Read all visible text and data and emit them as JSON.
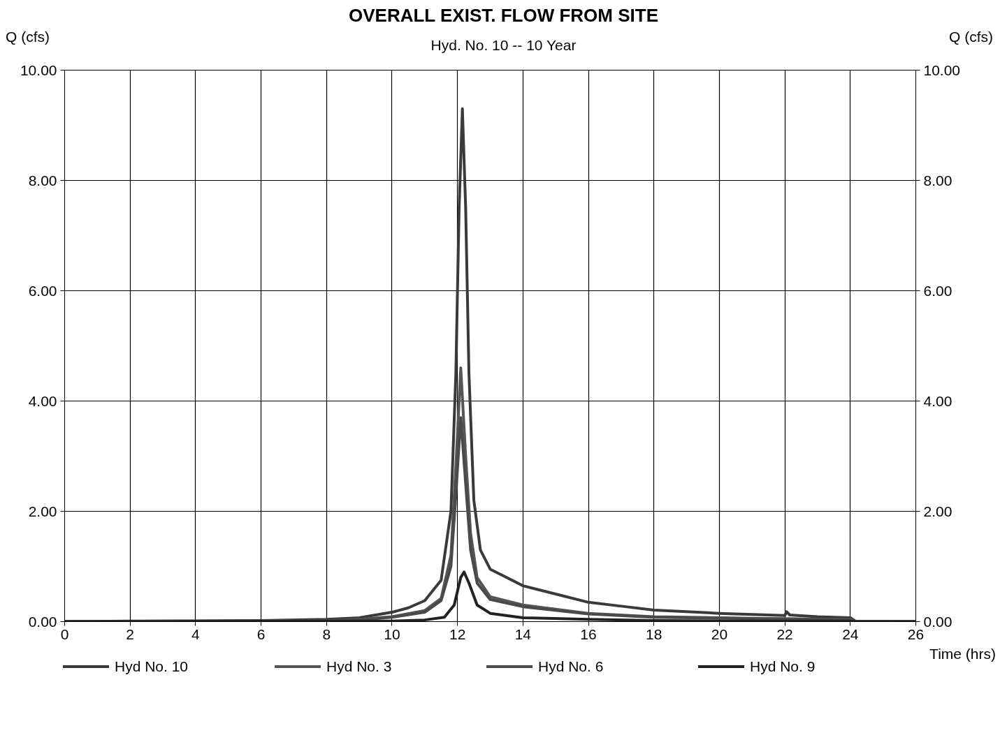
{
  "chart_data": {
    "type": "line",
    "title": "OVERALL EXIST. FLOW FROM SITE",
    "subtitle": "Hyd. No. 10 -- 10 Year",
    "xlabel": "Time (hrs)",
    "ylabel": "Q (cfs)",
    "y2label": "Q (cfs)",
    "xlim": [
      0,
      26
    ],
    "xticks": [
      0,
      2,
      4,
      6,
      8,
      10,
      12,
      14,
      16,
      18,
      20,
      22,
      24,
      26
    ],
    "ylim": [
      0,
      10
    ],
    "yticks": [
      {
        "value": 0,
        "label": "0.00"
      },
      {
        "value": 2,
        "label": "2.00"
      },
      {
        "value": 4,
        "label": "4.00"
      },
      {
        "value": 6,
        "label": "6.00"
      },
      {
        "value": 8,
        "label": "8.00"
      },
      {
        "value": 10,
        "label": "10.00"
      }
    ],
    "y2lim": [
      0,
      10
    ],
    "y2ticks": [
      {
        "value": 0,
        "label": "0.00"
      },
      {
        "value": 2,
        "label": "2.00"
      },
      {
        "value": 4,
        "label": "4.00"
      },
      {
        "value": 6,
        "label": "6.00"
      },
      {
        "value": 8,
        "label": "8.00"
      },
      {
        "value": 10,
        "label": "10.00"
      }
    ],
    "grid": true,
    "legend": "bottom",
    "marker": "none",
    "line_style": "solid",
    "series": [
      {
        "name": "Hyd No. 10",
        "color": "#3a3a3a",
        "x": [
          0,
          2,
          4,
          6,
          8,
          9,
          10,
          10.5,
          11,
          11.5,
          11.8,
          11.95,
          12.05,
          12.15,
          12.25,
          12.35,
          12.5,
          12.7,
          13,
          13.5,
          14,
          15,
          16,
          17,
          18,
          19,
          20,
          21,
          22,
          22.05,
          22.15,
          23,
          24,
          24.15,
          26
        ],
        "values": [
          0,
          0.01,
          0.01,
          0.02,
          0.04,
          0.07,
          0.17,
          0.25,
          0.38,
          0.75,
          2.0,
          4.5,
          7.5,
          9.3,
          7.5,
          4.5,
          2.2,
          1.3,
          0.95,
          0.8,
          0.65,
          0.5,
          0.35,
          0.28,
          0.21,
          0.18,
          0.15,
          0.13,
          0.11,
          0.18,
          0.12,
          0.09,
          0.07,
          0.01,
          0
        ]
      },
      {
        "name": "Hyd No. 3",
        "color": "#555555",
        "x": [
          0,
          4,
          8,
          9,
          10,
          11,
          11.5,
          11.8,
          11.95,
          12.1,
          12.25,
          12.4,
          12.6,
          13,
          14,
          16,
          18,
          20,
          22,
          24,
          24.15,
          26
        ],
        "values": [
          0,
          0.01,
          0.02,
          0.04,
          0.09,
          0.2,
          0.42,
          1.2,
          2.8,
          4.6,
          3.0,
          1.6,
          0.8,
          0.45,
          0.3,
          0.15,
          0.09,
          0.07,
          0.05,
          0.04,
          0,
          0
        ]
      },
      {
        "name": "Hyd No. 6",
        "color": "#4a4a4a",
        "x": [
          0,
          4,
          8,
          9,
          10,
          11,
          11.5,
          11.8,
          11.95,
          12.1,
          12.25,
          12.4,
          12.6,
          13,
          14,
          16,
          18,
          20,
          22,
          24,
          24.15,
          26
        ],
        "values": [
          0,
          0.01,
          0.02,
          0.03,
          0.08,
          0.17,
          0.38,
          1.0,
          2.3,
          3.7,
          2.5,
          1.3,
          0.7,
          0.4,
          0.27,
          0.14,
          0.08,
          0.06,
          0.05,
          0.03,
          0,
          0
        ]
      },
      {
        "name": "Hyd No. 9",
        "color": "#222222",
        "x": [
          0,
          10,
          11,
          11.6,
          11.9,
          12.1,
          12.2,
          12.35,
          12.6,
          13,
          14,
          16,
          18,
          20,
          24,
          24.15,
          26
        ],
        "values": [
          0,
          0.01,
          0.03,
          0.08,
          0.3,
          0.8,
          0.9,
          0.7,
          0.3,
          0.15,
          0.07,
          0.04,
          0.02,
          0.01,
          0.01,
          0,
          0
        ]
      }
    ]
  }
}
